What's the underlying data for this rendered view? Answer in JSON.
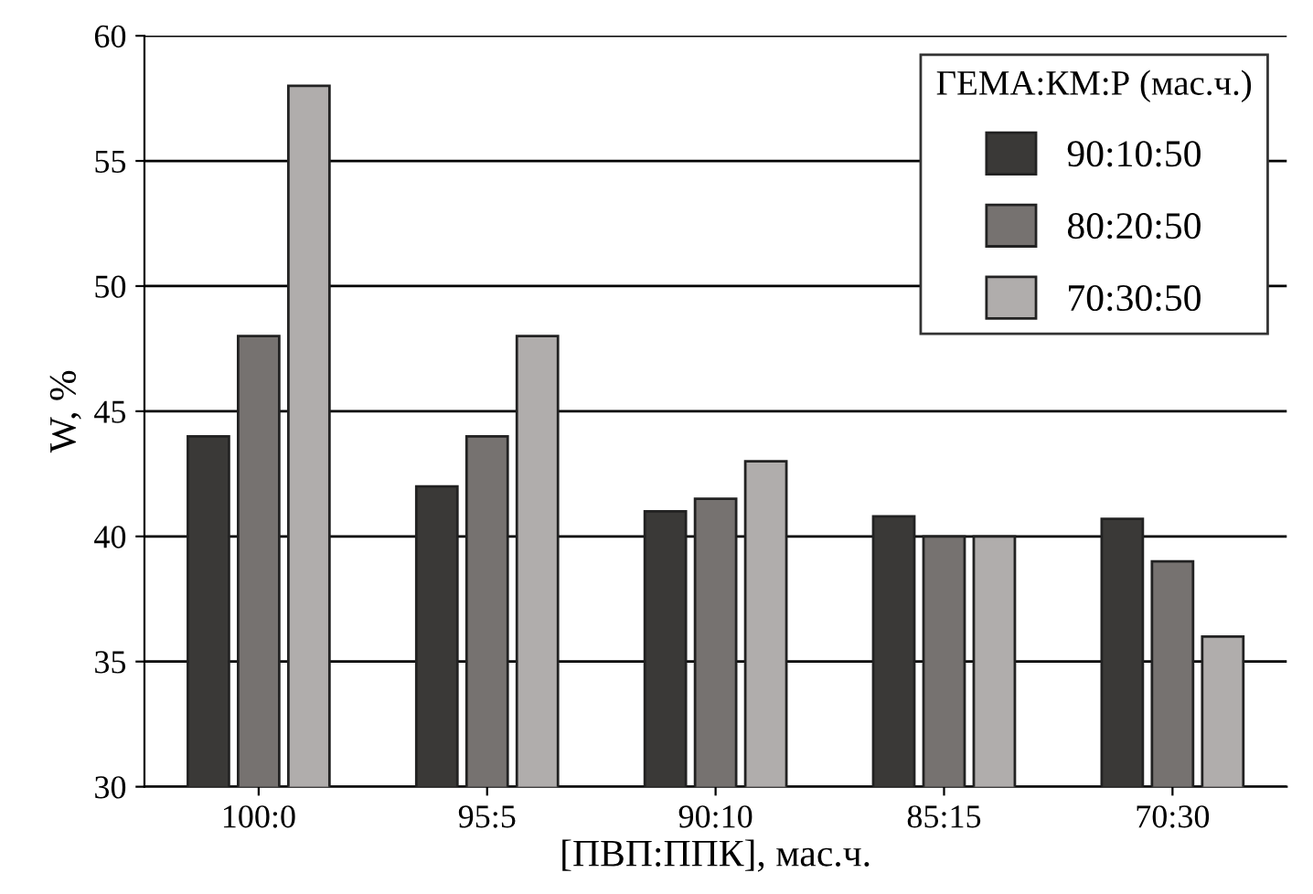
{
  "chart_data": {
    "type": "bar",
    "xlabel": "[ПВП:ППК], мас.ч.",
    "ylabel": "W, %",
    "legend_title": "ГЕМА:КМ:Р (мас.ч.)",
    "categories": [
      "100:0",
      "95:5",
      "90:10",
      "85:15",
      "70:30"
    ],
    "series": [
      {
        "name": "90:10:50",
        "color": "#3a3937",
        "values": [
          44,
          42,
          41,
          40.8,
          40.7
        ]
      },
      {
        "name": "80:20:50",
        "color": "#767270",
        "values": [
          48,
          44,
          41.5,
          40,
          39
        ]
      },
      {
        "name": "70:30:50",
        "color": "#b0adac",
        "values": [
          58,
          48,
          43,
          40,
          36
        ]
      }
    ],
    "ylim": [
      30,
      60
    ],
    "yticks": [
      30,
      35,
      40,
      45,
      50,
      55,
      60
    ],
    "grid": "y",
    "legend": "top right"
  }
}
